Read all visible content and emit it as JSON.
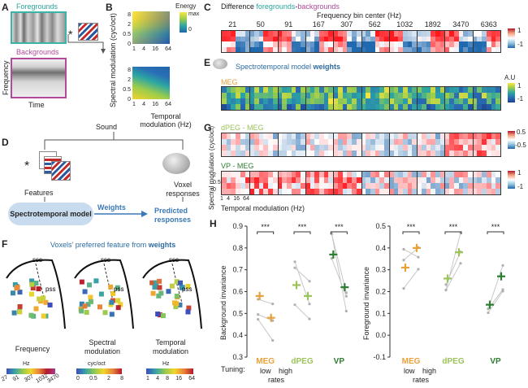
{
  "panelA": {
    "label": "A",
    "foregrounds": "Foregrounds",
    "backgrounds": "Backgrounds",
    "ylabel": "Frequency",
    "xlabel": "Time",
    "convolve": "*"
  },
  "panelB": {
    "label": "B",
    "ylabel": "Spectral modulation (cyc/oct)",
    "xlabel": "Temporal modulation (Hz)",
    "yticks": [
      "8",
      "2",
      "0.5",
      "0"
    ],
    "yticks2": [
      "8",
      "2",
      "0.5",
      "0"
    ],
    "xticks": [
      "1",
      "4",
      "16",
      "64"
    ],
    "xticks2": [
      "1",
      "4",
      "16",
      "64"
    ],
    "cbar_title": "Energy",
    "cbar_max": "max",
    "cbar_min": "0"
  },
  "panelC": {
    "label": "C",
    "title_prefix": "Difference ",
    "title_fg": "foregrounds",
    "title_dash": "-",
    "title_bg": "backgrounds",
    "subtitle": "Frequency bin center (Hz)",
    "bins": [
      "21",
      "50",
      "91",
      "167",
      "307",
      "562",
      "1032",
      "1892",
      "3470",
      "6363"
    ],
    "cbar_max": "1",
    "cbar_min": "-1"
  },
  "panelE": {
    "label": "E",
    "title_prefix": "Spectrotemporal model ",
    "title_bold": "weights",
    "row_label": "MEG",
    "cbar_title": "A.U",
    "cbar_max": "1",
    "cbar_min": "-1"
  },
  "panelG": {
    "label": "G",
    "row1_label": "dPEG - MEG",
    "row2_label": "VP - MEG",
    "cbar1_max": "0.5",
    "cbar1_min": "-0.5",
    "cbar2_max": "1",
    "cbar2_min": "-1",
    "ylabel": "Spectral modulation (cyc/oct)",
    "yticks": [
      "2",
      "0.5",
      "0"
    ],
    "xticks": [
      "1",
      "4",
      "16",
      "64"
    ],
    "xlabel": "Temporal modulation (Hz)"
  },
  "panelD": {
    "label": "D",
    "sound": "Sound",
    "features": "Features",
    "voxel": "Voxel responses",
    "model": "Spectrotemporal model",
    "weights": "Weights",
    "predicted": "Predicted responses",
    "convolve": "*"
  },
  "panelF": {
    "label": "F",
    "title_prefix": "Voxels' preferred feature from ",
    "title_bold": "weights",
    "sss": "sss",
    "pss": "pss",
    "maps": [
      {
        "title": "Frequency",
        "unit": "Hz",
        "ticks": [
          "27",
          "91",
          "307",
          "1032",
          "3470"
        ]
      },
      {
        "title": "Spectral modulation",
        "unit": "cyc/oct",
        "ticks": [
          "0",
          "0.5",
          "2",
          "8"
        ]
      },
      {
        "title": "Temporal modulation",
        "unit": "Hz",
        "ticks": [
          "1",
          "4",
          "8",
          "16",
          "64"
        ]
      }
    ]
  },
  "panelH": {
    "label": "H",
    "left_ylabel": "Background invariance",
    "right_ylabel": "Foreground invariance",
    "tuning": "Tuning:",
    "low": "low",
    "high": "high",
    "rates": "rates",
    "sig": "***",
    "colors": {
      "MEG": "#e8a13a",
      "dPEG": "#9cc35a",
      "VP": "#2e7d32"
    },
    "groups": [
      "MEG",
      "dPEG",
      "VP"
    ]
  },
  "chart_data": [
    {
      "type": "scatter",
      "title": "",
      "xlabel": "Tuning: low / high rates",
      "ylabel": "Background invariance",
      "ylim": [
        0.3,
        0.9
      ],
      "yticks": [
        0.3,
        0.4,
        0.5,
        0.6,
        0.7,
        0.8,
        0.9
      ],
      "categories": [
        "MEG",
        "dPEG",
        "VP"
      ],
      "series": [
        {
          "name": "low",
          "values": [
            0.58,
            0.63,
            0.77
          ]
        },
        {
          "name": "high",
          "values": [
            0.48,
            0.58,
            0.62
          ]
        }
      ],
      "significance": [
        "***",
        "***",
        "***"
      ]
    },
    {
      "type": "scatter",
      "title": "",
      "xlabel": "Tuning: low / high rates",
      "ylabel": "Foreground invariance",
      "ylim": [
        -0.1,
        0.5
      ],
      "yticks": [
        -0.1,
        0.0,
        0.1,
        0.2,
        0.3,
        0.4,
        0.5
      ],
      "categories": [
        "MEG",
        "dPEG",
        "VP"
      ],
      "series": [
        {
          "name": "low",
          "values": [
            0.31,
            0.26,
            0.14
          ]
        },
        {
          "name": "high",
          "values": [
            0.4,
            0.38,
            0.27
          ]
        }
      ],
      "significance": [
        "***",
        "***",
        "***"
      ]
    }
  ]
}
